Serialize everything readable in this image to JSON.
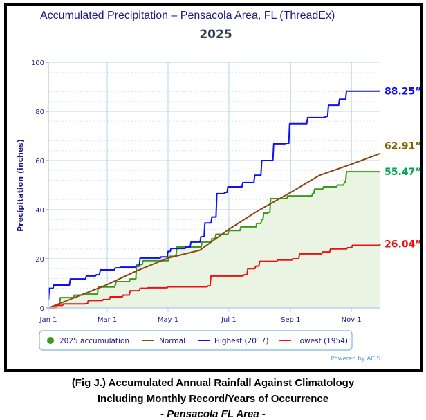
{
  "chart_data": {
    "type": "line",
    "title": "Accumulated Precipitation – Pensacola Area, FL (ThreadEx)",
    "subtitle": "2025",
    "xlabel": "",
    "ylabel": "Precipitation (inches)",
    "ylim": [
      0,
      100
    ],
    "xlim_day_of_year": [
      0,
      333
    ],
    "yticks": [
      "0",
      "20",
      "40",
      "60",
      "80",
      "100"
    ],
    "xticks": [
      {
        "label": "Jan 1",
        "day": 0
      },
      {
        "label": "Mar 1",
        "day": 59
      },
      {
        "label": "May 1",
        "day": 120
      },
      {
        "label": "Jul 1",
        "day": 181
      },
      {
        "label": "Sep 1",
        "day": 243
      },
      {
        "label": "Nov 1",
        "day": 304
      }
    ],
    "grid": true,
    "legend_position": "bottom",
    "credit": "Powered by ACIS",
    "series": [
      {
        "name": "2025 accumulation",
        "color": "#3a9a1a",
        "fill": "#eaf4e2",
        "end_label": "55.47”",
        "label_color": "#00a651",
        "step": true,
        "points": [
          [
            0,
            0
          ],
          [
            9,
            1.4
          ],
          [
            12,
            4.2
          ],
          [
            26,
            5.2
          ],
          [
            35,
            5.6
          ],
          [
            50,
            8.5
          ],
          [
            67,
            9.3
          ],
          [
            68,
            10.7
          ],
          [
            82,
            11.8
          ],
          [
            88,
            12
          ],
          [
            88.5,
            17.7
          ],
          [
            95,
            19.2
          ],
          [
            120,
            19.2
          ],
          [
            121,
            21
          ],
          [
            128,
            21.7
          ],
          [
            129,
            24.8
          ],
          [
            138,
            24.8
          ],
          [
            154,
            26.8
          ],
          [
            164,
            28.2
          ],
          [
            168,
            30
          ],
          [
            181,
            31.5
          ],
          [
            193,
            33
          ],
          [
            209,
            34.4
          ],
          [
            214,
            36
          ],
          [
            216,
            38.6
          ],
          [
            221,
            38.9
          ],
          [
            223,
            44.5
          ],
          [
            240,
            45.6
          ],
          [
            265,
            46.5
          ],
          [
            267,
            48.4
          ],
          [
            276,
            49.3
          ],
          [
            290,
            50
          ],
          [
            297,
            51.3
          ],
          [
            299,
            55.47
          ],
          [
            333,
            55.47
          ]
        ]
      },
      {
        "name": "Normal",
        "color": "#8b4513",
        "end_label": "62.91”",
        "label_color": "#806000",
        "step": false,
        "points": [
          [
            0,
            0
          ],
          [
            30,
            4.8
          ],
          [
            59,
            9.5
          ],
          [
            88,
            15
          ],
          [
            120,
            20.3
          ],
          [
            152,
            23.5
          ],
          [
            166,
            27.6
          ],
          [
            181,
            32
          ],
          [
            210,
            39.5
          ],
          [
            243,
            47
          ],
          [
            272,
            54
          ],
          [
            304,
            58.5
          ],
          [
            333,
            62.91
          ]
        ]
      },
      {
        "name": "Highest (2017)",
        "color": "#1010ee",
        "end_label": "88.25”",
        "label_color": "#1010ee",
        "step": true,
        "points": [
          [
            0,
            3.4
          ],
          [
            1,
            8
          ],
          [
            5.5,
            9.3
          ],
          [
            18.7,
            9.3
          ],
          [
            22,
            11.8
          ],
          [
            37,
            11.8
          ],
          [
            38,
            13
          ],
          [
            48,
            13.5
          ],
          [
            52,
            15.5
          ],
          [
            64,
            15.5
          ],
          [
            67,
            16.3
          ],
          [
            72,
            16.6
          ],
          [
            88,
            17
          ],
          [
            92,
            20.3
          ],
          [
            113,
            20.8
          ],
          [
            120,
            23
          ],
          [
            123,
            24.2
          ],
          [
            138,
            24.8
          ],
          [
            143,
            26.8
          ],
          [
            153,
            29
          ],
          [
            157,
            34.6
          ],
          [
            164,
            37
          ],
          [
            169,
            46.5
          ],
          [
            177,
            47
          ],
          [
            180,
            49.3
          ],
          [
            195,
            51
          ],
          [
            207,
            54
          ],
          [
            214,
            60
          ],
          [
            226,
            66.8
          ],
          [
            238,
            67
          ],
          [
            242,
            75
          ],
          [
            260,
            77.5
          ],
          [
            278,
            78
          ],
          [
            281,
            82.5
          ],
          [
            292,
            85
          ],
          [
            299,
            88.25
          ],
          [
            333,
            88.25
          ]
        ]
      },
      {
        "name": "Lowest (1954)",
        "color": "#ee1111",
        "end_label": "26.04”",
        "label_color": "#ee1111",
        "step": true,
        "points": [
          [
            0,
            0
          ],
          [
            7,
            1
          ],
          [
            15,
            1.6
          ],
          [
            37,
            1.7
          ],
          [
            40,
            3
          ],
          [
            55,
            3.4
          ],
          [
            62,
            4.5
          ],
          [
            75,
            5.2
          ],
          [
            82,
            7
          ],
          [
            92,
            8
          ],
          [
            100,
            8.2
          ],
          [
            120,
            8.6
          ],
          [
            160,
            9
          ],
          [
            163,
            13
          ],
          [
            196,
            13.5
          ],
          [
            200,
            16
          ],
          [
            208,
            17
          ],
          [
            212,
            19
          ],
          [
            230,
            19.5
          ],
          [
            245,
            20
          ],
          [
            252,
            22
          ],
          [
            275,
            22.8
          ],
          [
            283,
            24
          ],
          [
            300,
            24.5
          ],
          [
            305,
            25.5
          ],
          [
            333,
            26.04
          ]
        ]
      }
    ]
  },
  "caption": {
    "line1": "(Fig J.) Accumulated Annual Rainfall Against  Climatology",
    "line2": "Including Monthly Record/Years of Occurrence",
    "line3": "- Pensacola FL Area -"
  }
}
